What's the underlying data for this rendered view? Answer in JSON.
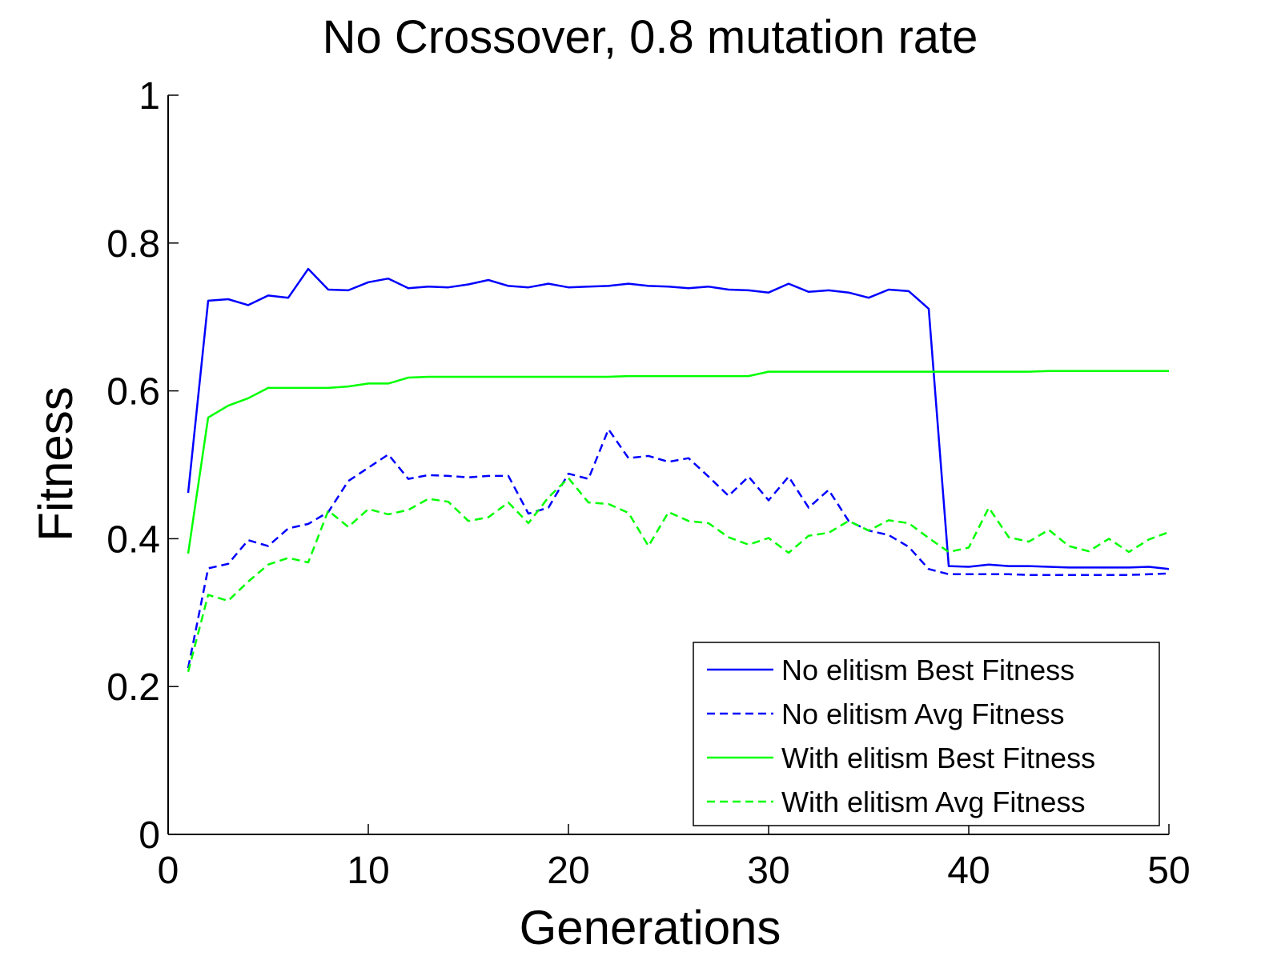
{
  "chart_data": {
    "type": "line",
    "title": "No Crossover, 0.8 mutation rate",
    "xlabel": "Generations",
    "ylabel": "Fitness",
    "xlim": [
      0,
      50
    ],
    "ylim": [
      0,
      1
    ],
    "xticks": [
      0,
      10,
      20,
      30,
      40,
      50
    ],
    "xtick_labels": [
      "0",
      "10",
      "20",
      "30",
      "40",
      "50"
    ],
    "yticks": [
      0,
      0.2,
      0.4,
      0.6,
      0.8,
      1
    ],
    "ytick_labels": [
      "0",
      "0.2",
      "0.4",
      "0.6",
      "0.8",
      "1"
    ],
    "grid": false,
    "legend_position": "bottom-right",
    "x": [
      1,
      2,
      3,
      4,
      5,
      6,
      7,
      8,
      9,
      10,
      11,
      12,
      13,
      14,
      15,
      16,
      17,
      18,
      19,
      20,
      21,
      22,
      23,
      24,
      25,
      26,
      27,
      28,
      29,
      30,
      31,
      32,
      33,
      34,
      35,
      36,
      37,
      38,
      39,
      40,
      41,
      42,
      43,
      44,
      45,
      46,
      47,
      48,
      49,
      50
    ],
    "series": [
      {
        "name": "No elitism Best Fitness",
        "color": "#0000ff",
        "style": "solid",
        "values": [
          0.462,
          0.722,
          0.724,
          0.716,
          0.729,
          0.726,
          0.765,
          0.737,
          0.736,
          0.747,
          0.752,
          0.739,
          0.741,
          0.74,
          0.744,
          0.75,
          0.742,
          0.74,
          0.745,
          0.74,
          0.741,
          0.742,
          0.745,
          0.742,
          0.741,
          0.739,
          0.741,
          0.737,
          0.736,
          0.733,
          0.745,
          0.734,
          0.736,
          0.733,
          0.726,
          0.737,
          0.735,
          0.711,
          0.363,
          0.362,
          0.365,
          0.363,
          0.363,
          0.362,
          0.361,
          0.361,
          0.361,
          0.361,
          0.362,
          0.359
        ]
      },
      {
        "name": "No elitism Avg Fitness",
        "color": "#0000ff",
        "style": "dashed",
        "values": [
          0.225,
          0.36,
          0.366,
          0.398,
          0.39,
          0.414,
          0.42,
          0.436,
          0.478,
          0.496,
          0.514,
          0.481,
          0.486,
          0.485,
          0.483,
          0.485,
          0.485,
          0.434,
          0.442,
          0.488,
          0.481,
          0.548,
          0.509,
          0.512,
          0.504,
          0.509,
          0.484,
          0.458,
          0.484,
          0.452,
          0.484,
          0.442,
          0.466,
          0.424,
          0.411,
          0.405,
          0.389,
          0.359,
          0.352,
          0.352,
          0.352,
          0.352,
          0.351,
          0.351,
          0.351,
          0.351,
          0.351,
          0.351,
          0.352,
          0.353
        ]
      },
      {
        "name": "With elitism Best Fitness",
        "color": "#00ff00",
        "style": "solid",
        "values": [
          0.38,
          0.564,
          0.58,
          0.59,
          0.604,
          0.604,
          0.604,
          0.604,
          0.606,
          0.61,
          0.61,
          0.618,
          0.619,
          0.619,
          0.619,
          0.619,
          0.619,
          0.619,
          0.619,
          0.619,
          0.619,
          0.619,
          0.62,
          0.62,
          0.62,
          0.62,
          0.62,
          0.62,
          0.62,
          0.626,
          0.626,
          0.626,
          0.626,
          0.626,
          0.626,
          0.626,
          0.626,
          0.626,
          0.626,
          0.626,
          0.626,
          0.626,
          0.626,
          0.627,
          0.627,
          0.627,
          0.627,
          0.627,
          0.627,
          0.627
        ]
      },
      {
        "name": "With elitism Avg Fitness",
        "color": "#00ff00",
        "style": "dashed",
        "values": [
          0.22,
          0.324,
          0.316,
          0.342,
          0.365,
          0.374,
          0.368,
          0.438,
          0.416,
          0.44,
          0.433,
          0.439,
          0.454,
          0.45,
          0.424,
          0.429,
          0.449,
          0.421,
          0.456,
          0.482,
          0.449,
          0.447,
          0.435,
          0.39,
          0.436,
          0.424,
          0.421,
          0.402,
          0.392,
          0.401,
          0.381,
          0.404,
          0.408,
          0.424,
          0.411,
          0.425,
          0.421,
          0.401,
          0.382,
          0.388,
          0.442,
          0.402,
          0.396,
          0.412,
          0.39,
          0.383,
          0.4,
          0.382,
          0.399,
          0.409
        ]
      }
    ]
  }
}
